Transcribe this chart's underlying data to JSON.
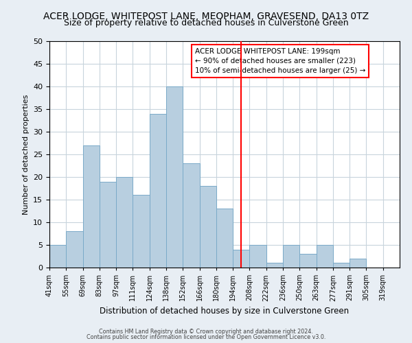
{
  "title": "ACER LODGE, WHITEPOST LANE, MEOPHAM, GRAVESEND, DA13 0TZ",
  "subtitle": "Size of property relative to detached houses in Culverstone Green",
  "xlabel": "Distribution of detached houses by size in Culverstone Green",
  "ylabel": "Number of detached properties",
  "footer_line1": "Contains HM Land Registry data © Crown copyright and database right 2024.",
  "footer_line2": "Contains public sector information licensed under the Open Government Licence v3.0.",
  "bin_labels": [
    "41sqm",
    "55sqm",
    "69sqm",
    "83sqm",
    "97sqm",
    "111sqm",
    "124sqm",
    "138sqm",
    "152sqm",
    "166sqm",
    "180sqm",
    "194sqm",
    "208sqm",
    "222sqm",
    "236sqm",
    "250sqm",
    "263sqm",
    "277sqm",
    "291sqm",
    "305sqm",
    "319sqm"
  ],
  "bar_heights": [
    5,
    8,
    27,
    19,
    20,
    16,
    34,
    40,
    23,
    18,
    13,
    4,
    5,
    1,
    5,
    3,
    5,
    1,
    2,
    0,
    0
  ],
  "bar_color": "#b8cfe0",
  "bar_edge_color": "#7aaac8",
  "vline_x_index": 11.5,
  "vline_color": "red",
  "annotation_title": "ACER LODGE WHITEPOST LANE: 199sqm",
  "annotation_line1": "← 90% of detached houses are smaller (223)",
  "annotation_line2": "10% of semi-detached houses are larger (25) →",
  "ylim": [
    0,
    50
  ],
  "yticks": [
    0,
    5,
    10,
    15,
    20,
    25,
    30,
    35,
    40,
    45,
    50
  ],
  "background_color": "#e8eef4",
  "plot_bg_color": "#ffffff",
  "title_fontsize": 10,
  "subtitle_fontsize": 9,
  "grid_color": "#c8d4dc"
}
